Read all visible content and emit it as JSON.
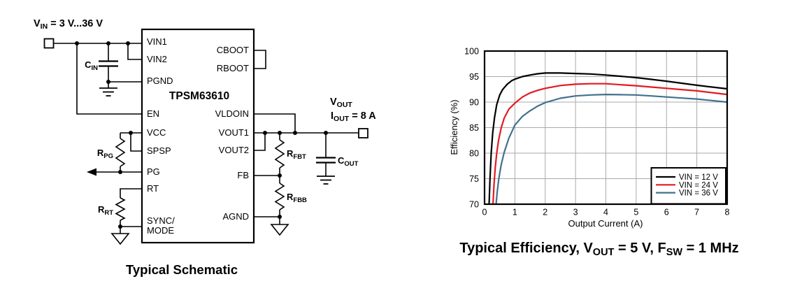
{
  "schematic": {
    "caption": "Typical Schematic",
    "input_label": {
      "t1": "V",
      "s1": "IN",
      "t2": " = 3 V...36 V"
    },
    "ic": {
      "name": "TPSM63610",
      "left_pins": [
        "VIN1",
        "VIN2",
        "PGND",
        "EN",
        "VCC",
        "SPSP",
        "PG",
        "RT",
        "SYNC/",
        "MODE"
      ],
      "right_pins": [
        "CBOOT",
        "RBOOT",
        "VLDOIN",
        "VOUT1",
        "VOUT2",
        "FB",
        "AGND"
      ]
    },
    "components": {
      "cin": {
        "t1": "C",
        "s1": "IN"
      },
      "rpg": {
        "t1": "R",
        "s1": "PG"
      },
      "rrt": {
        "t1": "R",
        "s1": "RT"
      },
      "rfbt": {
        "t1": "R",
        "s1": "FBT"
      },
      "rfbb": {
        "t1": "R",
        "s1": "FBB"
      },
      "cout": {
        "t1": "C",
        "s1": "OUT"
      }
    },
    "output_labels": {
      "vout": {
        "t1": "V",
        "s1": "OUT"
      },
      "iout": {
        "t1": "I",
        "s1": "OUT",
        "t2": " = 8 A"
      }
    }
  },
  "chart": {
    "title": {
      "t1": "Typical Efficiency, V",
      "s1": "OUT",
      "t2": " = 5 V, F",
      "s2": "SW",
      "t3": " = 1 MHz"
    }
  },
  "chart_data": {
    "type": "line",
    "title": "Typical Efficiency, VOUT = 5 V, FSW = 1 MHz",
    "xlabel": "Output Current (A)",
    "ylabel": "Efficiency (%)",
    "xlim": [
      0,
      8
    ],
    "ylim": [
      70,
      100
    ],
    "xticks": [
      0,
      1,
      2,
      3,
      4,
      5,
      6,
      7,
      8
    ],
    "yticks": [
      70,
      75,
      80,
      85,
      90,
      95,
      100
    ],
    "grid": true,
    "legend_position": "lower right",
    "series": [
      {
        "name": "VIN = 12 V",
        "color": "#000000",
        "points": [
          [
            0.15,
            70
          ],
          [
            0.18,
            75
          ],
          [
            0.22,
            80
          ],
          [
            0.27,
            84
          ],
          [
            0.33,
            87
          ],
          [
            0.4,
            89.5
          ],
          [
            0.5,
            91.4
          ],
          [
            0.6,
            92.5
          ],
          [
            0.75,
            93.5
          ],
          [
            0.9,
            94.2
          ],
          [
            1,
            94.5
          ],
          [
            1.25,
            95.0
          ],
          [
            1.5,
            95.3
          ],
          [
            1.75,
            95.55
          ],
          [
            2,
            95.7
          ],
          [
            2.5,
            95.7
          ],
          [
            3,
            95.6
          ],
          [
            3.5,
            95.5
          ],
          [
            4,
            95.3
          ],
          [
            4.5,
            95.05
          ],
          [
            5,
            94.8
          ],
          [
            5.5,
            94.45
          ],
          [
            6,
            94.1
          ],
          [
            6.5,
            93.7
          ],
          [
            7,
            93.3
          ],
          [
            7.5,
            92.95
          ],
          [
            8,
            92.6
          ]
        ]
      },
      {
        "name": "VIN = 24 V",
        "color": "#e11b22",
        "points": [
          [
            0.28,
            70
          ],
          [
            0.31,
            73.5
          ],
          [
            0.35,
            77
          ],
          [
            0.4,
            80
          ],
          [
            0.46,
            82.5
          ],
          [
            0.55,
            85
          ],
          [
            0.65,
            86.9
          ],
          [
            0.8,
            88.6
          ],
          [
            1,
            89.8
          ],
          [
            1.25,
            91.0
          ],
          [
            1.5,
            91.8
          ],
          [
            1.75,
            92.3
          ],
          [
            2,
            92.7
          ],
          [
            2.5,
            93.25
          ],
          [
            3,
            93.5
          ],
          [
            3.5,
            93.6
          ],
          [
            4,
            93.6
          ],
          [
            4.5,
            93.4
          ],
          [
            5,
            93.2
          ],
          [
            5.5,
            92.95
          ],
          [
            6,
            92.7
          ],
          [
            6.5,
            92.45
          ],
          [
            7,
            92.2
          ],
          [
            7.5,
            91.85
          ],
          [
            8,
            91.5
          ]
        ]
      },
      {
        "name": "VIN = 36 V",
        "color": "#40718f",
        "points": [
          [
            0.38,
            70
          ],
          [
            0.42,
            72.5
          ],
          [
            0.47,
            75
          ],
          [
            0.55,
            77.8
          ],
          [
            0.65,
            80.2
          ],
          [
            0.8,
            82.9
          ],
          [
            1,
            85.5
          ],
          [
            1.25,
            87.2
          ],
          [
            1.5,
            88.3
          ],
          [
            1.75,
            89.2
          ],
          [
            2,
            89.9
          ],
          [
            2.5,
            90.75
          ],
          [
            3,
            91.2
          ],
          [
            3.5,
            91.4
          ],
          [
            4,
            91.5
          ],
          [
            4.5,
            91.45
          ],
          [
            5,
            91.4
          ],
          [
            5.5,
            91.2
          ],
          [
            6,
            91.0
          ],
          [
            6.5,
            90.8
          ],
          [
            7,
            90.6
          ],
          [
            7.5,
            90.3
          ],
          [
            8,
            90.0
          ]
        ]
      }
    ]
  }
}
